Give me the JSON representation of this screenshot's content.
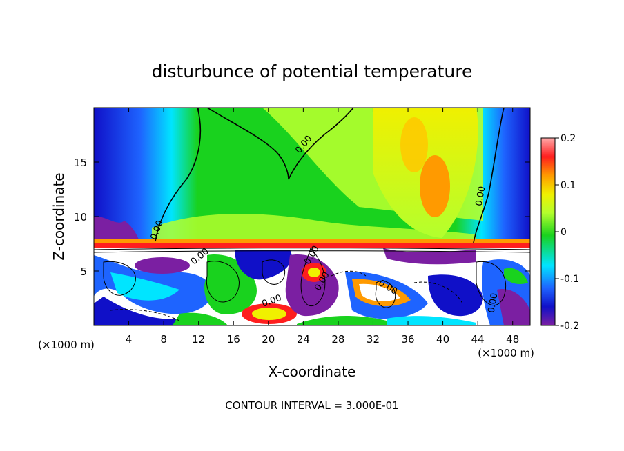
{
  "chart_data": {
    "type": "heatmap",
    "title": "disturbunce of potential temperature",
    "xlabel": "X-coordinate",
    "ylabel": "Z-coordinate",
    "x_unit_left": "(×1000 m)",
    "x_unit_right": "(×1000 m)",
    "xlim": [
      0,
      50
    ],
    "ylim": [
      0,
      20
    ],
    "x_ticks": [
      "4",
      "8",
      "12",
      "16",
      "20",
      "24",
      "28",
      "32",
      "36",
      "40",
      "44",
      "48"
    ],
    "y_ticks": [
      "5",
      "10",
      "15"
    ],
    "colorbar": {
      "range": [
        -0.2,
        0.2
      ],
      "tick_labels": [
        "0.2",
        "0.1",
        "0",
        "-0.1",
        "-0.2"
      ]
    },
    "contour_labels": [
      "0.00",
      "0.00",
      "0.00",
      "0.00",
      "0.00",
      "0.00",
      "0.00",
      "0.00",
      "0.00"
    ],
    "footer": "CONTOUR INTERVAL = 3.000E-01",
    "colors": {
      "violet": "#7b1fa2",
      "blue_dark": "#1010c8",
      "blue": "#1e64ff",
      "cyan": "#00e5ff",
      "green": "#19d21e",
      "lime": "#b4ff2d",
      "yellow": "#f0f000",
      "orange": "#ff9a00",
      "red": "#ff1e1e",
      "pink": "#ffaaaa"
    }
  }
}
